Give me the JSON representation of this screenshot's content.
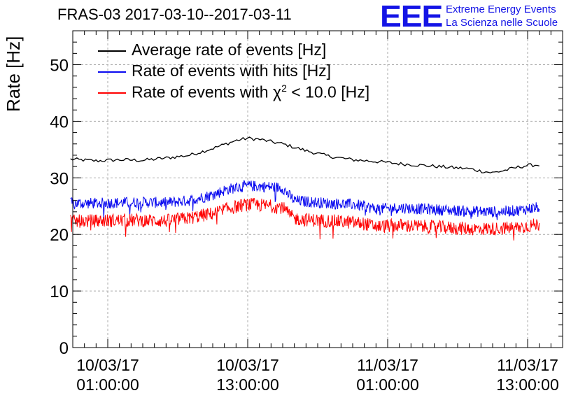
{
  "header": {
    "title": "FRAS-03 2017-03-10--2017-03-11",
    "logo": "EEE",
    "logo_line1": "Extreme Energy Events",
    "logo_line2": "La Scienza nelle Scuole"
  },
  "colors": {
    "avg": "#000000",
    "hits": "#0a0af0",
    "chi2": "#ff0000",
    "logo": "#1414e6",
    "grid": "#aaaaaa"
  },
  "legend": [
    {
      "label": "Average rate of events [Hz]",
      "color": "#000000"
    },
    {
      "label": "Rate of events with hits [Hz]",
      "color": "#0a0af0"
    },
    {
      "label_prefix": "Rate of events with ",
      "chi": "χ",
      "sup": "2",
      "label_suffix": " < 10.0 [Hz]",
      "color": "#ff0000"
    }
  ],
  "chart_data": {
    "type": "line",
    "title": "FRAS-03 2017-03-10--2017-03-11",
    "xlabel": "",
    "ylabel": "Rate [Hz]",
    "x_unit": "hours since 10/03/17 00:00:00",
    "xlim": [
      -2.0,
      40.0
    ],
    "ylim": [
      0,
      56
    ],
    "yticks": [
      0,
      10,
      20,
      30,
      40,
      50
    ],
    "xticks": [
      {
        "x": 1,
        "date": "10/03/17",
        "time": "01:00:00"
      },
      {
        "x": 13,
        "date": "10/03/17",
        "time": "13:00:00"
      },
      {
        "x": 25,
        "date": "11/03/17",
        "time": "01:00:00"
      },
      {
        "x": 37,
        "date": "11/03/17",
        "time": "13:00:00"
      }
    ],
    "grid": true,
    "series": [
      {
        "name": "Average rate of events [Hz]",
        "color": "#000000",
        "x": [
          -2.2,
          0,
          2,
          4,
          6,
          8,
          10,
          12,
          13,
          14,
          15,
          16,
          18,
          20,
          22,
          24,
          26,
          28,
          30,
          32,
          33,
          34,
          35,
          36,
          37,
          38
        ],
        "values": [
          33.3,
          33.0,
          33.2,
          33.1,
          33.5,
          34.0,
          35.2,
          36.6,
          37.0,
          36.8,
          36.4,
          36.0,
          34.8,
          33.8,
          33.2,
          32.9,
          32.5,
          32.2,
          31.9,
          31.6,
          31.2,
          30.9,
          31.3,
          31.8,
          32.2,
          32.3
        ],
        "noise": 0.3
      },
      {
        "name": "Rate of events with hits [Hz]",
        "color": "#0a0af0",
        "x": [
          -2.2,
          0,
          2,
          4,
          6,
          8,
          10,
          11,
          12,
          13,
          14,
          15,
          16,
          16.5,
          17,
          18,
          20,
          22,
          23,
          24,
          26,
          28,
          30,
          32,
          34,
          36,
          38
        ],
        "values": [
          25.5,
          25.5,
          25.6,
          25.7,
          25.6,
          26.0,
          27.0,
          27.8,
          28.3,
          28.6,
          28.5,
          28.4,
          28.2,
          27.0,
          26.0,
          25.8,
          25.5,
          25.3,
          25.0,
          24.5,
          24.7,
          24.5,
          24.3,
          24.1,
          24.0,
          24.2,
          24.8
        ],
        "noise": 1.0
      },
      {
        "name": "Rate of events with χ2 < 10.0 [Hz]",
        "color": "#ff0000",
        "x": [
          -2.2,
          0,
          2,
          4,
          6,
          8,
          10,
          11,
          12,
          13,
          14,
          15,
          16,
          16.5,
          17,
          18,
          20,
          22,
          23,
          24,
          26,
          28,
          30,
          32,
          34,
          36,
          38
        ],
        "values": [
          22.3,
          22.4,
          22.5,
          22.5,
          22.4,
          22.9,
          23.7,
          24.4,
          24.9,
          25.3,
          25.2,
          25.0,
          24.8,
          23.6,
          22.8,
          22.6,
          22.4,
          22.1,
          21.9,
          21.4,
          21.6,
          21.4,
          21.2,
          21.0,
          21.0,
          21.2,
          21.8
        ],
        "noise": 1.2
      }
    ]
  }
}
